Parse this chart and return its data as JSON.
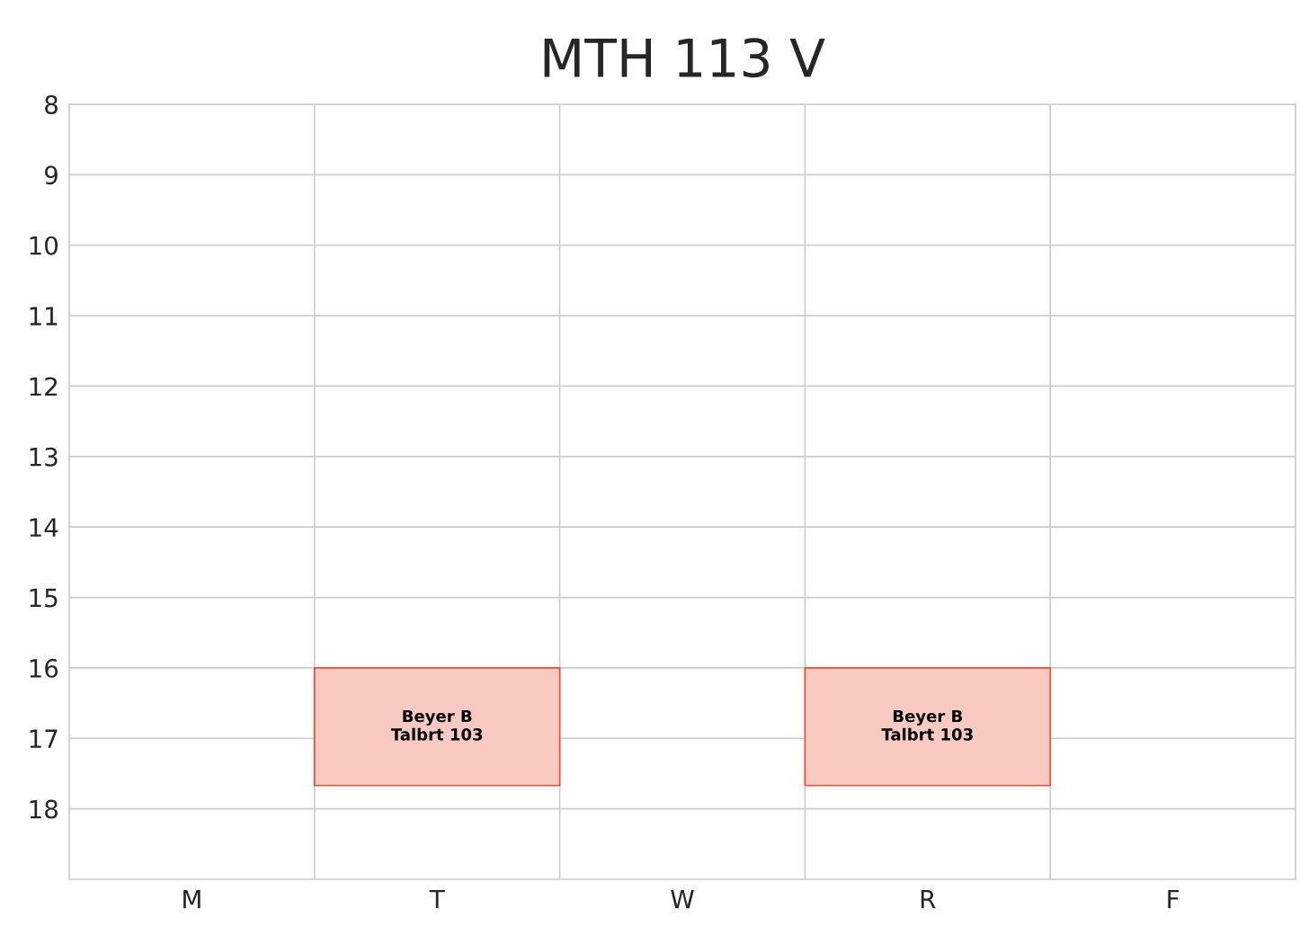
{
  "chart_data": {
    "type": "bar",
    "title": "MTH 113 V",
    "categories": [
      "M",
      "T",
      "W",
      "R",
      "F"
    ],
    "base": [
      null,
      16,
      null,
      16,
      null
    ],
    "values": [
      null,
      1.67,
      null,
      1.67,
      null
    ],
    "value_labels": [
      null,
      "Beyer B\nTalbrt 103",
      null,
      "Beyer B\nTalbrt 103",
      null
    ],
    "color": "#f8cac2",
    "ylim": [
      19,
      8
    ],
    "yticks": [
      8,
      9,
      10,
      11,
      12,
      13,
      14,
      15,
      16,
      17,
      18
    ],
    "grid": true
  }
}
